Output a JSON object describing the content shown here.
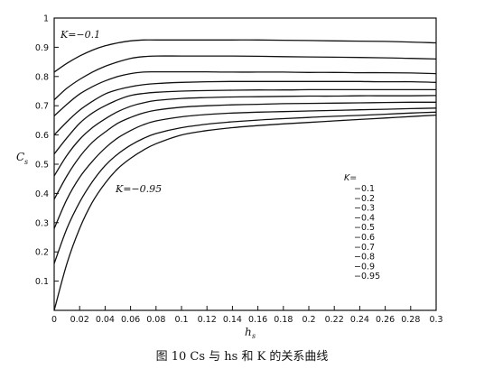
{
  "chart_data": {
    "type": "line",
    "xlabel": "h",
    "xlabel_sub": "s",
    "ylabel": "C",
    "ylabel_sub": "s",
    "xlim": [
      0,
      0.3
    ],
    "ylim": [
      0,
      1
    ],
    "x_ticks": [
      "0",
      "0.02",
      "0.04",
      "0.06",
      "0.08",
      "0.1",
      "0.12",
      "0.14",
      "0.16",
      "0.18",
      "0.2",
      "0.22",
      "0.24",
      "0.26",
      "0.28",
      "0.3"
    ],
    "y_ticks": [
      "0.1",
      "0.2",
      "0.3",
      "0.4",
      "0.5",
      "0.6",
      "0.7",
      "0.8",
      "0.9",
      "1"
    ],
    "x": [
      0,
      0.01,
      0.02,
      0.03,
      0.04,
      0.05,
      0.06,
      0.07,
      0.08,
      0.1,
      0.12,
      0.14,
      0.16,
      0.18,
      0.2,
      0.22,
      0.24,
      0.26,
      0.28,
      0.3
    ],
    "series": [
      {
        "name": "-0.1",
        "values": [
          0.815,
          0.845,
          0.87,
          0.89,
          0.905,
          0.915,
          0.922,
          0.925,
          0.925,
          0.925,
          0.925,
          0.925,
          0.925,
          0.924,
          0.923,
          0.922,
          0.921,
          0.92,
          0.918,
          0.915
        ]
      },
      {
        "name": "-0.2",
        "values": [
          0.72,
          0.76,
          0.79,
          0.815,
          0.835,
          0.85,
          0.862,
          0.868,
          0.87,
          0.87,
          0.87,
          0.87,
          0.869,
          0.868,
          0.867,
          0.866,
          0.865,
          0.864,
          0.862,
          0.86
        ]
      },
      {
        "name": "-0.3",
        "values": [
          0.665,
          0.705,
          0.74,
          0.765,
          0.785,
          0.8,
          0.81,
          0.815,
          0.816,
          0.816,
          0.816,
          0.815,
          0.815,
          0.815,
          0.814,
          0.814,
          0.813,
          0.813,
          0.812,
          0.81
        ]
      },
      {
        "name": "-0.4",
        "values": [
          0.6,
          0.645,
          0.685,
          0.715,
          0.74,
          0.755,
          0.765,
          0.772,
          0.776,
          0.78,
          0.782,
          0.783,
          0.783,
          0.783,
          0.783,
          0.783,
          0.783,
          0.782,
          0.782,
          0.78
        ]
      },
      {
        "name": "-0.5",
        "values": [
          0.535,
          0.59,
          0.64,
          0.675,
          0.7,
          0.72,
          0.735,
          0.742,
          0.746,
          0.75,
          0.752,
          0.753,
          0.754,
          0.754,
          0.755,
          0.755,
          0.755,
          0.755,
          0.755,
          0.755
        ]
      },
      {
        "name": "-0.6",
        "values": [
          0.46,
          0.53,
          0.585,
          0.625,
          0.655,
          0.68,
          0.698,
          0.71,
          0.718,
          0.725,
          0.728,
          0.73,
          0.731,
          0.732,
          0.733,
          0.733,
          0.734,
          0.734,
          0.734,
          0.735
        ]
      },
      {
        "name": "-0.7",
        "values": [
          0.38,
          0.46,
          0.525,
          0.575,
          0.61,
          0.64,
          0.66,
          0.675,
          0.685,
          0.695,
          0.7,
          0.703,
          0.705,
          0.707,
          0.708,
          0.709,
          0.71,
          0.711,
          0.712,
          0.712
        ]
      },
      {
        "name": "-0.8",
        "values": [
          0.28,
          0.38,
          0.455,
          0.51,
          0.555,
          0.59,
          0.615,
          0.635,
          0.648,
          0.662,
          0.67,
          0.675,
          0.678,
          0.68,
          0.682,
          0.684,
          0.686,
          0.688,
          0.69,
          0.692
        ]
      },
      {
        "name": "-0.9",
        "values": [
          0.16,
          0.28,
          0.37,
          0.44,
          0.495,
          0.535,
          0.565,
          0.588,
          0.605,
          0.625,
          0.637,
          0.645,
          0.651,
          0.656,
          0.66,
          0.664,
          0.667,
          0.671,
          0.675,
          0.678
        ]
      },
      {
        "name": "-0.95",
        "values": [
          0.0,
          0.16,
          0.28,
          0.37,
          0.435,
          0.485,
          0.52,
          0.548,
          0.57,
          0.6,
          0.615,
          0.625,
          0.632,
          0.638,
          0.643,
          0.648,
          0.653,
          0.658,
          0.663,
          0.668
        ]
      }
    ],
    "annotations": {
      "top": "K=−0.1",
      "bottom": "K=−0.95"
    },
    "legend_title": "K=",
    "legend_items": [
      "−0.1",
      "−0.2",
      "−0.3",
      "−0.4",
      "−0.5",
      "−0.6",
      "−0.7",
      "−0.8",
      "−0.9",
      "−0.95"
    ],
    "legend_placement": "right-middle",
    "grid": false
  },
  "caption": "图 10  Cs 与 hs 和 K 的关系曲线"
}
